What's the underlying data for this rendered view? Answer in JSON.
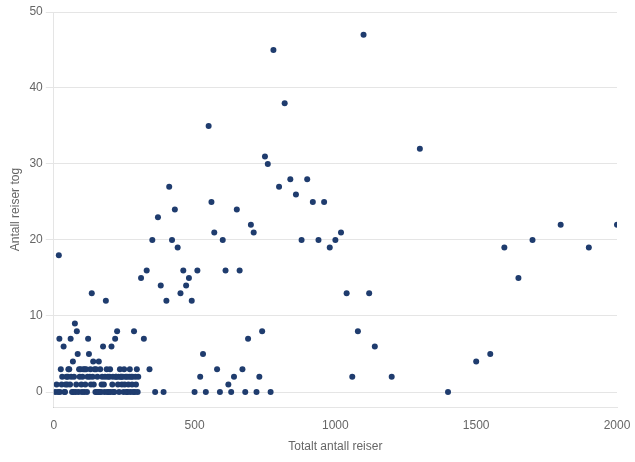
{
  "chart_data": {
    "type": "scatter",
    "xlabel": "Totalt antall reiser",
    "ylabel": "Antall reiser tog",
    "xlim": [
      0,
      2000
    ],
    "ylim": [
      -2,
      50
    ],
    "xticks": [
      0,
      500,
      1000,
      1500,
      2000
    ],
    "yticks": [
      0,
      10,
      20,
      30,
      40,
      50
    ],
    "grid": "y",
    "color": "#1f3c6e",
    "x": [
      5,
      10,
      15,
      18,
      20,
      22,
      25,
      28,
      30,
      35,
      38,
      40,
      42,
      45,
      48,
      50,
      52,
      55,
      58,
      60,
      62,
      65,
      68,
      70,
      72,
      75,
      78,
      80,
      82,
      85,
      88,
      90,
      92,
      95,
      98,
      100,
      102,
      105,
      108,
      110,
      112,
      115,
      118,
      120,
      122,
      125,
      128,
      130,
      132,
      135,
      138,
      140,
      142,
      145,
      148,
      150,
      152,
      155,
      158,
      160,
      162,
      165,
      168,
      170,
      172,
      175,
      178,
      180,
      182,
      185,
      188,
      190,
      192,
      195,
      198,
      200,
      202,
      205,
      208,
      210,
      212,
      215,
      218,
      220,
      222,
      225,
      228,
      230,
      232,
      235,
      238,
      240,
      242,
      245,
      248,
      250,
      252,
      255,
      258,
      260,
      262,
      265,
      268,
      270,
      272,
      275,
      278,
      280,
      282,
      285,
      288,
      290,
      292,
      295,
      298,
      300,
      310,
      320,
      330,
      340,
      350,
      360,
      370,
      380,
      390,
      400,
      410,
      420,
      430,
      440,
      450,
      460,
      470,
      480,
      490,
      500,
      510,
      520,
      530,
      540,
      550,
      560,
      570,
      580,
      590,
      600,
      610,
      620,
      630,
      640,
      650,
      660,
      670,
      680,
      690,
      700,
      710,
      720,
      730,
      740,
      750,
      760,
      770,
      780,
      800,
      820,
      840,
      860,
      880,
      900,
      920,
      940,
      960,
      980,
      1000,
      1020,
      1040,
      1060,
      1080,
      1100,
      1120,
      1140,
      1200,
      1300,
      1400,
      1500,
      1550,
      1600,
      1650,
      1700,
      1800,
      1900,
      2000
    ],
    "values": [
      0,
      1,
      0,
      18,
      7,
      0,
      3,
      1,
      2,
      6,
      0,
      0,
      1,
      2,
      1,
      2,
      3,
      3,
      1,
      7,
      2,
      0,
      4,
      0,
      2,
      9,
      0,
      1,
      8,
      5,
      0,
      3,
      2,
      3,
      1,
      0,
      2,
      3,
      0,
      3,
      1,
      3,
      0,
      2,
      7,
      5,
      2,
      3,
      1,
      13,
      2,
      4,
      1,
      3,
      0,
      3,
      0,
      2,
      0,
      4,
      0,
      3,
      0,
      1,
      2,
      6,
      1,
      0,
      2,
      12,
      3,
      0,
      2,
      0,
      2,
      3,
      0,
      6,
      1,
      2,
      0,
      0,
      7,
      2,
      2,
      8,
      1,
      2,
      0,
      3,
      2,
      2,
      1,
      2,
      0,
      3,
      1,
      2,
      0,
      2,
      0,
      1,
      2,
      3,
      0,
      2,
      1,
      2,
      0,
      8,
      0,
      2,
      1,
      3,
      0,
      2,
      15,
      7,
      16,
      3,
      20,
      0,
      23,
      14,
      0,
      12,
      27,
      20,
      24,
      19,
      13,
      16,
      14,
      15,
      12,
      0,
      16,
      2,
      5,
      0,
      35,
      25,
      21,
      3,
      0,
      20,
      16,
      1,
      0,
      2,
      24,
      16,
      3,
      0,
      7,
      22,
      21,
      0,
      2,
      8,
      31,
      30,
      0,
      45,
      27,
      38,
      28,
      26,
      20,
      28,
      25,
      20,
      25,
      19,
      20,
      21,
      13,
      2,
      8,
      47,
      13,
      6,
      2,
      32,
      0,
      4,
      5,
      19,
      15,
      20,
      22,
      19,
      22
    ]
  }
}
